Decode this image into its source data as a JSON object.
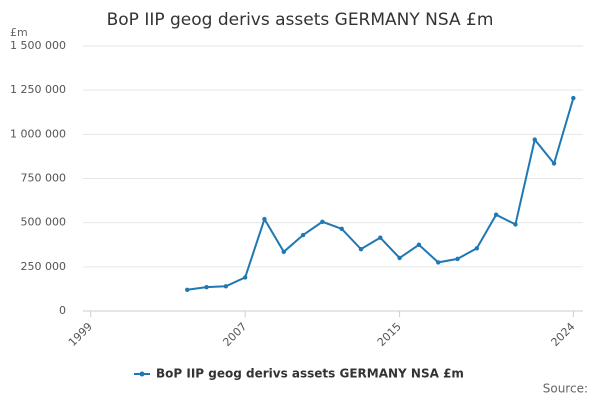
{
  "chart_data": {
    "type": "line",
    "title": "BoP IIP geog derivs assets GERMANY NSA £m",
    "y_unit": "£m",
    "source_label": "Source:",
    "x": [
      2004,
      2005,
      2006,
      2007,
      2008,
      2009,
      2010,
      2011,
      2012,
      2013,
      2014,
      2015,
      2016,
      2017,
      2018,
      2019,
      2020,
      2021,
      2022,
      2023,
      2024
    ],
    "series": [
      {
        "name": "BoP IIP geog derivs assets GERMANY NSA £m",
        "color": "#1f78b4",
        "values": [
          120000,
          135000,
          140000,
          190000,
          520000,
          335000,
          430000,
          505000,
          465000,
          350000,
          415000,
          300000,
          375000,
          275000,
          295000,
          355000,
          545000,
          490000,
          970000,
          835000,
          1205000
        ]
      }
    ],
    "xlim": [
      1998.6,
      2024.5
    ],
    "xticks": [
      1999,
      2007,
      2015,
      2024
    ],
    "ylim": [
      0,
      1500000
    ],
    "yticks": [
      0,
      {
        "value": 250000,
        "label": "250 000"
      },
      {
        "value": 500000,
        "label": "500 000"
      },
      {
        "value": 750000,
        "label": "750 000"
      },
      {
        "value": 1000000,
        "label": "1 000 000"
      },
      {
        "value": 1250000,
        "label": "1 250 000"
      },
      {
        "value": 1500000,
        "label": "1 500 000"
      }
    ],
    "grid": true
  }
}
